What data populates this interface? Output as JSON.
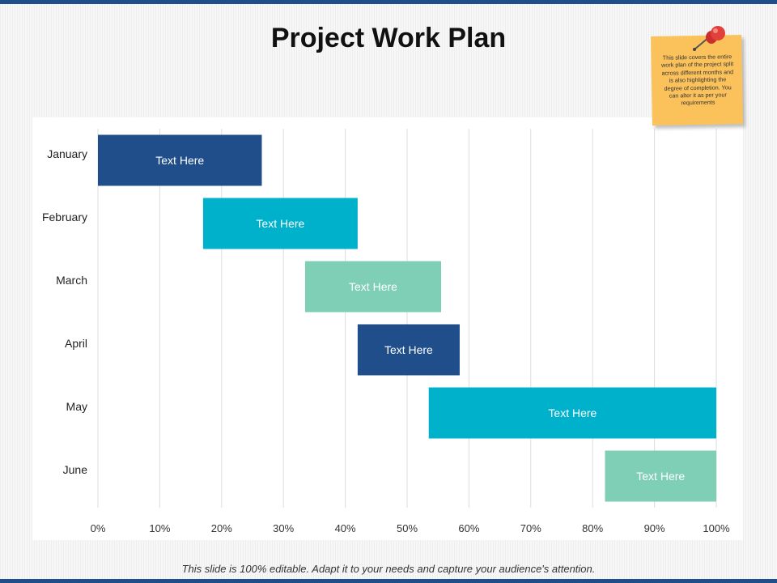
{
  "slide": {
    "title": "Project Work Plan",
    "footer": "This slide is 100% editable. Adapt it to your needs and capture your audience's  attention.",
    "note": "This slide covers the entire work plan of the project split across different months and is also highlighting the degree of completion. You can alter it as per your requirements"
  },
  "colors": {
    "accent_bar": "#1f4e8a",
    "series": [
      "#1f4e8a",
      "#00b1cc",
      "#7ecfb6"
    ],
    "note": "#fbc25c",
    "pin": "#e2403a"
  },
  "icons": {
    "pin": "pushpin-icon"
  },
  "chart_data": {
    "type": "bar",
    "orientation": "horizontal",
    "stacked": true,
    "categories": [
      "January",
      "February",
      "March",
      "April",
      "May",
      "June"
    ],
    "series": [
      {
        "values": [
          0,
          17,
          33.5,
          42,
          53.5,
          82
        ]
      },
      {
        "values": [
          26.5,
          25,
          22,
          16.5,
          46.5,
          18
        ],
        "labels": [
          "Text Here",
          "Text Here",
          "Text Here",
          "Text Here",
          "Text Here",
          "Text Here"
        ]
      }
    ],
    "xlim": [
      0,
      100
    ],
    "xticks": [
      "0%",
      "10%",
      "20%",
      "30%",
      "40%",
      "50%",
      "60%",
      "70%",
      "80%",
      "90%",
      "100%"
    ],
    "grid": true,
    "legend": "none",
    "title": "",
    "xlabel": "",
    "ylabel": ""
  }
}
